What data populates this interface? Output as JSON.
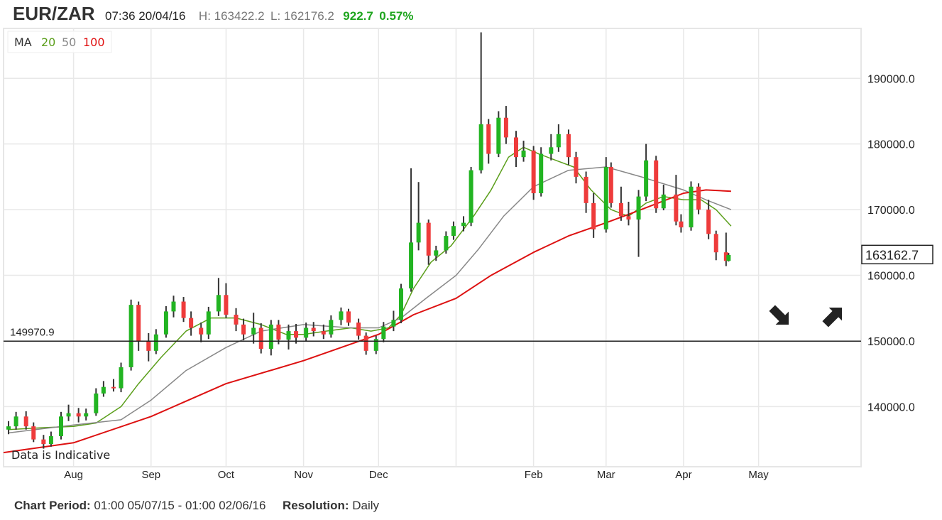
{
  "header": {
    "symbol": "EUR/ZAR",
    "timestamp": "07:36 20/04/16",
    "high": "H: 163422.2",
    "low": "L: 162176.2",
    "change": "922.7",
    "change_pct": "0.57%"
  },
  "legend": {
    "label": "MA",
    "ma20": "20",
    "ma50": "50",
    "ma100": "100"
  },
  "disclaimer": "Data is Indicative",
  "footer": {
    "period_label": "Chart Period:",
    "period_value": "01:00 05/07/15 - 01:00 02/06/16",
    "resolution_label": "Resolution:",
    "resolution_value": "Daily"
  },
  "colors": {
    "up": "#22b422",
    "down": "#ee3b3b",
    "wick": "#333333",
    "ma20": "#5a9e1a",
    "ma50": "#888888",
    "ma100": "#dd1111",
    "change": "#1ea51e"
  },
  "icons": [
    "arrow-down-right-icon",
    "arrow-up-right-icon"
  ],
  "chart_data": {
    "type": "candlestick",
    "xlim": [
      "2015-07-04",
      "2016-06-11"
    ],
    "ylim": [
      130850,
      197600
    ],
    "grid": true,
    "x_ticks": [
      {
        "date": "2015-08-01",
        "label": "Aug"
      },
      {
        "date": "2015-09-01",
        "label": "Sep"
      },
      {
        "date": "2015-10-01",
        "label": "Oct"
      },
      {
        "date": "2015-11-01",
        "label": "Nov"
      },
      {
        "date": "2015-12-01",
        "label": "Dec"
      },
      {
        "date": "2016-01-01",
        "label": ""
      },
      {
        "date": "2016-02-01",
        "label": "Feb"
      },
      {
        "date": "2016-03-01",
        "label": "Mar"
      },
      {
        "date": "2016-04-01",
        "label": "Apr"
      },
      {
        "date": "2016-05-01",
        "label": "May"
      }
    ],
    "y_ticks": [
      {
        "value": 140000,
        "label": "140000.0"
      },
      {
        "value": 150000,
        "label": "150000.0"
      },
      {
        "value": 160000,
        "label": "160000.0"
      },
      {
        "value": 170000,
        "label": "170000.0"
      },
      {
        "value": 180000,
        "label": "180000.0"
      },
      {
        "value": 190000,
        "label": "190000.0"
      }
    ],
    "current_price": {
      "value": 163162.7,
      "label": "163162.7"
    },
    "reference_line": {
      "value": 149970.9,
      "label": "149970.9"
    },
    "candles_columns": [
      "date",
      "open",
      "high",
      "low",
      "close"
    ],
    "candles": [
      [
        "2015-07-06",
        136500,
        137800,
        135800,
        137000
      ],
      [
        "2015-07-09",
        137000,
        139200,
        136500,
        138500
      ],
      [
        "2015-07-13",
        138500,
        139300,
        136500,
        137000
      ],
      [
        "2015-07-16",
        137000,
        137600,
        134600,
        135000
      ],
      [
        "2015-07-20",
        135000,
        135700,
        133600,
        134300
      ],
      [
        "2015-07-23",
        134300,
        136200,
        133900,
        135500
      ],
      [
        "2015-07-27",
        135500,
        139200,
        135000,
        138500
      ],
      [
        "2015-07-30",
        138500,
        140300,
        137800,
        139000
      ],
      [
        "2015-08-03",
        139000,
        139800,
        137600,
        138500
      ],
      [
        "2015-08-06",
        138500,
        139700,
        137900,
        139000
      ],
      [
        "2015-08-10",
        139000,
        142800,
        138600,
        142000
      ],
      [
        "2015-08-13",
        142000,
        143900,
        141500,
        143000
      ],
      [
        "2015-08-17",
        143000,
        144200,
        142300,
        142800
      ],
      [
        "2015-08-20",
        142800,
        146700,
        142200,
        146000
      ],
      [
        "2015-08-24",
        146000,
        156300,
        145500,
        155500
      ],
      [
        "2015-08-27",
        155500,
        156000,
        148500,
        150000
      ],
      [
        "2015-08-31",
        150000,
        151200,
        146900,
        148500
      ],
      [
        "2015-09-03",
        148500,
        151800,
        148000,
        151000
      ],
      [
        "2015-09-07",
        151000,
        155300,
        150500,
        154500
      ],
      [
        "2015-09-10",
        154500,
        156900,
        153600,
        156000
      ],
      [
        "2015-09-14",
        156000,
        156700,
        152900,
        153500
      ],
      [
        "2015-09-17",
        153500,
        154500,
        150800,
        152000
      ],
      [
        "2015-09-21",
        152000,
        152800,
        149800,
        151000
      ],
      [
        "2015-09-24",
        151000,
        155200,
        150300,
        154500
      ],
      [
        "2015-09-28",
        154500,
        159600,
        153800,
        157000
      ],
      [
        "2015-10-01",
        157000,
        158800,
        153500,
        154000
      ],
      [
        "2015-10-05",
        154000,
        155000,
        151500,
        152500
      ],
      [
        "2015-10-08",
        152500,
        153400,
        150100,
        151000
      ],
      [
        "2015-10-12",
        151000,
        154300,
        149600,
        152000
      ],
      [
        "2015-10-15",
        152000,
        152700,
        148100,
        148800
      ],
      [
        "2015-10-19",
        148800,
        153200,
        147800,
        152500
      ],
      [
        "2015-10-22",
        152500,
        153200,
        149500,
        150200
      ],
      [
        "2015-10-26",
        150200,
        152500,
        148700,
        151500
      ],
      [
        "2015-10-29",
        151500,
        152600,
        149600,
        150500
      ],
      [
        "2015-11-02",
        150500,
        152800,
        150000,
        152000
      ],
      [
        "2015-11-05",
        152000,
        152900,
        150700,
        151500
      ],
      [
        "2015-11-09",
        151500,
        152500,
        150300,
        151000
      ],
      [
        "2015-11-12",
        151000,
        153900,
        150500,
        153200
      ],
      [
        "2015-11-16",
        153200,
        155100,
        152400,
        154500
      ],
      [
        "2015-11-19",
        154500,
        154900,
        152300,
        152800
      ],
      [
        "2015-11-23",
        152800,
        153400,
        150200,
        150800
      ],
      [
        "2015-11-26",
        150800,
        151300,
        147900,
        148500
      ],
      [
        "2015-11-30",
        148500,
        150800,
        148000,
        150300
      ],
      [
        "2015-12-03",
        150300,
        152900,
        149800,
        152200
      ],
      [
        "2015-12-07",
        152200,
        154600,
        151500,
        153200
      ],
      [
        "2015-12-10",
        153200,
        158700,
        152700,
        158000
      ],
      [
        "2015-12-14",
        158000,
        176300,
        157500,
        165000
      ],
      [
        "2015-12-17",
        165000,
        174200,
        163800,
        168000
      ],
      [
        "2015-12-21",
        168000,
        168500,
        161600,
        163000
      ],
      [
        "2015-12-24",
        163000,
        164500,
        162200,
        163800
      ],
      [
        "2015-12-28",
        163800,
        166700,
        163300,
        166000
      ],
      [
        "2015-12-31",
        166000,
        168200,
        165400,
        167500
      ],
      [
        "2016-01-04",
        167500,
        169000,
        166700,
        168000
      ],
      [
        "2016-01-07",
        168000,
        176500,
        167500,
        176000
      ],
      [
        "2016-01-11",
        176000,
        197000,
        175500,
        183000
      ],
      [
        "2016-01-14",
        183000,
        183800,
        177000,
        178500
      ],
      [
        "2016-01-18",
        178500,
        185000,
        178000,
        184000
      ],
      [
        "2016-01-21",
        184000,
        185800,
        180000,
        181000
      ],
      [
        "2016-01-25",
        181000,
        182000,
        176500,
        178000
      ],
      [
        "2016-01-28",
        178000,
        180500,
        177300,
        179000
      ],
      [
        "2016-02-01",
        179000,
        179700,
        171500,
        172500
      ],
      [
        "2016-02-04",
        172500,
        179500,
        172000,
        178500
      ],
      [
        "2016-02-08",
        178500,
        181500,
        177500,
        179500
      ],
      [
        "2016-02-11",
        179500,
        183000,
        178800,
        181500
      ],
      [
        "2016-02-15",
        181500,
        182200,
        176800,
        178000
      ],
      [
        "2016-02-18",
        178000,
        178800,
        174000,
        175000
      ],
      [
        "2016-02-22",
        175000,
        175800,
        169500,
        171000
      ],
      [
        "2016-02-25",
        171000,
        172500,
        165700,
        167000
      ],
      [
        "2016-03-01",
        167000,
        178000,
        166500,
        176500
      ],
      [
        "2016-03-03",
        176500,
        177200,
        170300,
        171000
      ],
      [
        "2016-03-07",
        171000,
        173500,
        168300,
        169000
      ],
      [
        "2016-03-10",
        169000,
        171200,
        167600,
        168500
      ],
      [
        "2016-03-14",
        168500,
        173000,
        162800,
        172000
      ],
      [
        "2016-03-17",
        172000,
        180000,
        171300,
        177500
      ],
      [
        "2016-03-21",
        177500,
        178200,
        169500,
        170200
      ],
      [
        "2016-03-24",
        170200,
        173800,
        169900,
        172300
      ],
      [
        "2016-03-29",
        172300,
        175300,
        167600,
        168200
      ],
      [
        "2016-03-31",
        168200,
        169300,
        166500,
        167300
      ],
      [
        "2016-04-04",
        167300,
        174300,
        166800,
        173500
      ],
      [
        "2016-04-07",
        173500,
        174000,
        169300,
        170000
      ],
      [
        "2016-04-11",
        170000,
        171500,
        165500,
        166300
      ],
      [
        "2016-04-14",
        166300,
        166800,
        162300,
        163500
      ],
      [
        "2016-04-18",
        163500,
        166500,
        161400,
        162200
      ],
      [
        "2016-04-19",
        162200,
        163400,
        162100,
        163100
      ]
    ],
    "moving_averages": [
      {
        "name": "20",
        "color": "#5a9e1a",
        "points": [
          [
            "2015-07-06",
            136500
          ],
          [
            "2015-07-20",
            136800
          ],
          [
            "2015-08-01",
            137000
          ],
          [
            "2015-08-10",
            137500
          ],
          [
            "2015-08-20",
            140000
          ],
          [
            "2015-08-27",
            143500
          ],
          [
            "2015-09-05",
            147500
          ],
          [
            "2015-09-15",
            151500
          ],
          [
            "2015-09-25",
            153500
          ],
          [
            "2015-10-05",
            153500
          ],
          [
            "2015-10-15",
            152500
          ],
          [
            "2015-10-25",
            151000
          ],
          [
            "2015-11-01",
            151000
          ],
          [
            "2015-11-10",
            151500
          ],
          [
            "2015-11-20",
            152000
          ],
          [
            "2015-11-28",
            151500
          ],
          [
            "2015-12-05",
            152000
          ],
          [
            "2015-12-10",
            154000
          ],
          [
            "2015-12-15",
            158000
          ],
          [
            "2015-12-22",
            162000
          ],
          [
            "2015-12-30",
            164500
          ],
          [
            "2016-01-05",
            167500
          ],
          [
            "2016-01-08",
            169000
          ],
          [
            "2016-01-15",
            173000
          ],
          [
            "2016-01-22",
            178000
          ],
          [
            "2016-01-28",
            179500
          ],
          [
            "2016-02-03",
            178500
          ],
          [
            "2016-02-10",
            177500
          ],
          [
            "2016-02-17",
            176500
          ],
          [
            "2016-02-24",
            173000
          ],
          [
            "2016-03-03",
            170000
          ],
          [
            "2016-03-10",
            169000
          ],
          [
            "2016-03-17",
            171000
          ],
          [
            "2016-03-24",
            172000
          ],
          [
            "2016-04-01",
            171500
          ],
          [
            "2016-04-08",
            171500
          ],
          [
            "2016-04-14",
            170000
          ],
          [
            "2016-04-20",
            167500
          ]
        ]
      },
      {
        "name": "50",
        "color": "#888888",
        "points": [
          [
            "2015-07-06",
            136000
          ],
          [
            "2015-08-01",
            137200
          ],
          [
            "2015-08-20",
            138000
          ],
          [
            "2015-09-01",
            141000
          ],
          [
            "2015-09-15",
            145500
          ],
          [
            "2015-10-01",
            149000
          ],
          [
            "2015-10-15",
            151500
          ],
          [
            "2015-11-01",
            152500
          ],
          [
            "2015-11-20",
            152000
          ],
          [
            "2015-12-01",
            152000
          ],
          [
            "2015-12-10",
            153500
          ],
          [
            "2015-12-20",
            156500
          ],
          [
            "2016-01-01",
            160000
          ],
          [
            "2016-01-10",
            164000
          ],
          [
            "2016-01-20",
            169000
          ],
          [
            "2016-02-01",
            173500
          ],
          [
            "2016-02-15",
            176000
          ],
          [
            "2016-03-01",
            176500
          ],
          [
            "2016-03-15",
            175000
          ],
          [
            "2016-04-01",
            173000
          ],
          [
            "2016-04-10",
            171500
          ],
          [
            "2016-04-20",
            170000
          ]
        ]
      },
      {
        "name": "100",
        "color": "#dd1111",
        "points": [
          [
            "2015-07-04",
            133000
          ],
          [
            "2015-08-01",
            134500
          ],
          [
            "2015-09-01",
            138500
          ],
          [
            "2015-10-01",
            143500
          ],
          [
            "2015-11-01",
            147000
          ],
          [
            "2015-12-01",
            151000
          ],
          [
            "2015-12-15",
            154000
          ],
          [
            "2016-01-01",
            156500
          ],
          [
            "2016-01-15",
            160000
          ],
          [
            "2016-02-01",
            163500
          ],
          [
            "2016-02-15",
            166000
          ],
          [
            "2016-03-01",
            168000
          ],
          [
            "2016-03-15",
            170000
          ],
          [
            "2016-04-01",
            172500
          ],
          [
            "2016-04-10",
            173000
          ],
          [
            "2016-04-20",
            172800
          ]
        ]
      }
    ]
  }
}
